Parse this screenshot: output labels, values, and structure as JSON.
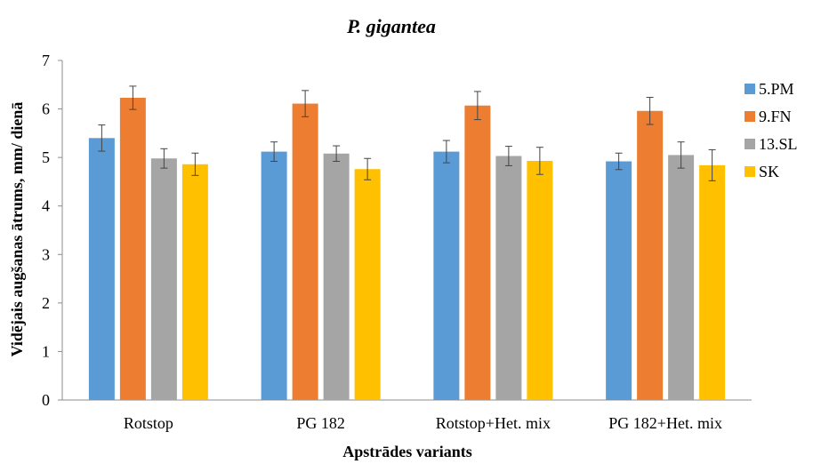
{
  "chart_data": {
    "type": "bar",
    "title": "P. gigantea",
    "xlabel": "Apstrādes variants",
    "ylabel": "Vidējais augšanas ātrums, mm/ dienā",
    "ylim": [
      0,
      7
    ],
    "yticks": [
      0,
      1,
      2,
      3,
      4,
      5,
      6,
      7
    ],
    "grid": false,
    "legend_position": "right",
    "categories": [
      "Rotstop",
      "PG 182",
      "Rotstop+Het. mix",
      "PG 182+Het. mix"
    ],
    "series": [
      {
        "name": "5.PM",
        "color": "#5B9BD5",
        "values": [
          5.4,
          5.12,
          5.12,
          4.92
        ],
        "errors": [
          0.27,
          0.2,
          0.23,
          0.17
        ]
      },
      {
        "name": "9.FN",
        "color": "#ED7D31",
        "values": [
          6.23,
          6.11,
          6.07,
          5.96
        ],
        "errors": [
          0.24,
          0.27,
          0.29,
          0.28
        ]
      },
      {
        "name": "13.SL",
        "color": "#A5A5A5",
        "values": [
          4.98,
          5.08,
          5.03,
          5.05
        ],
        "errors": [
          0.2,
          0.16,
          0.2,
          0.27
        ]
      },
      {
        "name": "SK",
        "color": "#FFC000",
        "values": [
          4.86,
          4.76,
          4.93,
          4.84
        ],
        "errors": [
          0.23,
          0.22,
          0.28,
          0.32
        ]
      }
    ]
  }
}
